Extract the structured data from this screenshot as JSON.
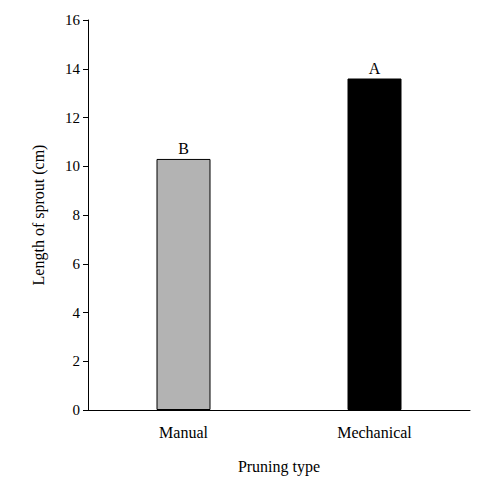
{
  "chart_data": {
    "type": "bar",
    "x_label": "Pruning type",
    "y_label": "Length of sprout (cm)",
    "categories": [
      "Manual",
      "Mechanical"
    ],
    "values": [
      10.3,
      13.6
    ],
    "colors": [
      "#b3b3b3",
      "#000000"
    ],
    "annotations": [
      "B",
      "A"
    ],
    "ylim": [
      0,
      16
    ],
    "yticks": [
      0,
      2,
      4,
      6,
      8,
      10,
      12,
      14,
      16
    ],
    "grid": false
  }
}
